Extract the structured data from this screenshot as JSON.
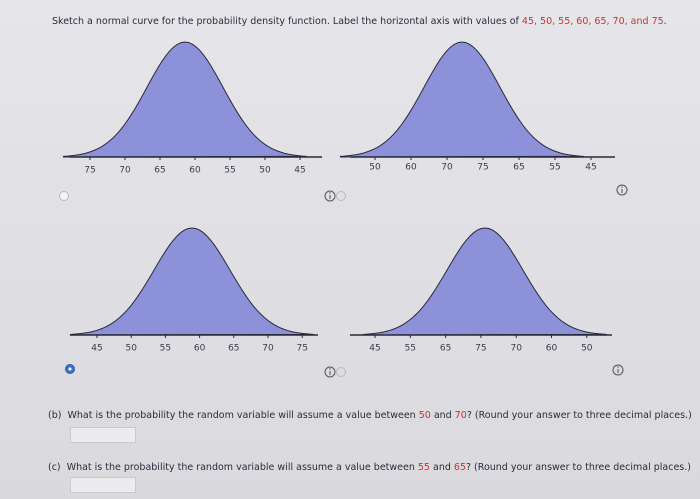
{
  "instruction": {
    "text": "Sketch a normal curve for the probability density function. Label the horizontal axis with values of ",
    "values": "45, 50, 55, 60, 65, 70, and 75",
    "end": "."
  },
  "options": [
    {
      "labels": [
        "75",
        "70",
        "65",
        "60",
        "55",
        "50",
        "45"
      ]
    },
    {
      "labels": [
        "50",
        "60",
        "70",
        "75",
        "65",
        "55",
        "45"
      ]
    },
    {
      "labels": [
        "45",
        "50",
        "55",
        "60",
        "65",
        "70",
        "75"
      ]
    },
    {
      "labels": [
        "45",
        "55",
        "65",
        "75",
        "70",
        "60",
        "50"
      ]
    }
  ],
  "parts": [
    {
      "label": "(b)",
      "before": "What is the probability the random variable will assume a value between ",
      "a": "50",
      "mid": " and ",
      "b": "70",
      "after": "? (Round your answer to three decimal places.)"
    },
    {
      "label": "(c)",
      "before": "What is the probability the random variable will assume a value between ",
      "a": "55",
      "mid": " and ",
      "b": "65",
      "after": "? (Round your answer to three decimal places.)"
    }
  ]
}
